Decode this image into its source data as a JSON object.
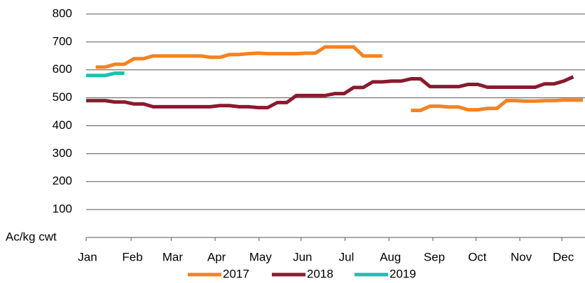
{
  "chart_data": {
    "type": "line",
    "y_label": "Ac/kg cwt",
    "x": [
      0,
      1,
      2,
      3,
      4,
      5,
      6,
      7,
      8,
      9,
      10,
      11,
      12,
      13,
      14,
      15,
      16,
      17,
      18,
      19,
      20,
      21,
      22,
      23,
      24,
      25,
      26,
      27,
      28,
      29,
      30,
      31,
      32,
      33,
      34,
      35,
      36,
      37,
      38,
      39,
      40,
      41,
      42,
      43,
      44,
      45,
      46,
      47,
      48,
      49,
      50,
      51,
      52
    ],
    "xlim": [
      0,
      52
    ],
    "xticks": [
      {
        "value": 0,
        "label": "Jan"
      },
      {
        "value": 4.7,
        "label": "Feb"
      },
      {
        "value": 8.9,
        "label": "Mar"
      },
      {
        "value": 13.5,
        "label": "Apr"
      },
      {
        "value": 18.1,
        "label": "May"
      },
      {
        "value": 22.5,
        "label": "Jun"
      },
      {
        "value": 27.1,
        "label": "Jul"
      },
      {
        "value": 31.7,
        "label": "Aug"
      },
      {
        "value": 36.3,
        "label": "Sep"
      },
      {
        "value": 40.8,
        "label": "Oct"
      },
      {
        "value": 45.4,
        "label": "Nov"
      },
      {
        "value": 49.8,
        "label": "Dec"
      }
    ],
    "ylim": [
      0,
      800
    ],
    "yticks": [
      100,
      200,
      300,
      400,
      500,
      600,
      700,
      800
    ],
    "grid": true,
    "legend": "bottom",
    "series": [
      {
        "name": "2017",
        "color": "#f58220",
        "values": [
          null,
          610,
          610,
          620,
          620,
          640,
          640,
          650,
          650,
          650,
          650,
          650,
          650,
          645,
          645,
          655,
          655,
          658,
          660,
          658,
          658,
          658,
          658,
          660,
          660,
          682,
          682,
          682,
          682,
          650,
          650,
          650,
          null,
          null,
          455,
          455,
          470,
          470,
          467,
          467,
          457,
          457,
          462,
          462,
          490,
          490,
          488,
          488,
          490,
          490,
          492,
          492,
          492
        ]
      },
      {
        "name": "2018",
        "color": "#8b1a2f",
        "values": [
          490,
          490,
          490,
          485,
          485,
          478,
          478,
          468,
          468,
          468,
          468,
          468,
          468,
          468,
          472,
          472,
          468,
          468,
          465,
          465,
          483,
          483,
          508,
          508,
          508,
          508,
          515,
          515,
          537,
          537,
          557,
          557,
          560,
          560,
          568,
          568,
          540,
          540,
          540,
          540,
          548,
          548,
          538,
          538,
          538,
          538,
          538,
          538,
          550,
          550,
          560,
          575,
          null
        ]
      },
      {
        "name": "2019",
        "color": "#1fbfb0",
        "values": [
          580,
          580,
          580,
          588,
          588,
          null,
          null,
          null,
          null,
          null,
          null,
          null,
          null,
          null,
          null,
          null,
          null,
          null,
          null,
          null,
          null,
          null,
          null,
          null,
          null,
          null,
          null,
          null,
          null,
          null,
          null,
          null,
          null,
          null,
          null,
          null,
          null,
          null,
          null,
          null,
          null,
          null,
          null,
          null,
          null,
          null,
          null,
          null,
          null,
          null,
          null,
          null,
          null
        ]
      }
    ]
  }
}
